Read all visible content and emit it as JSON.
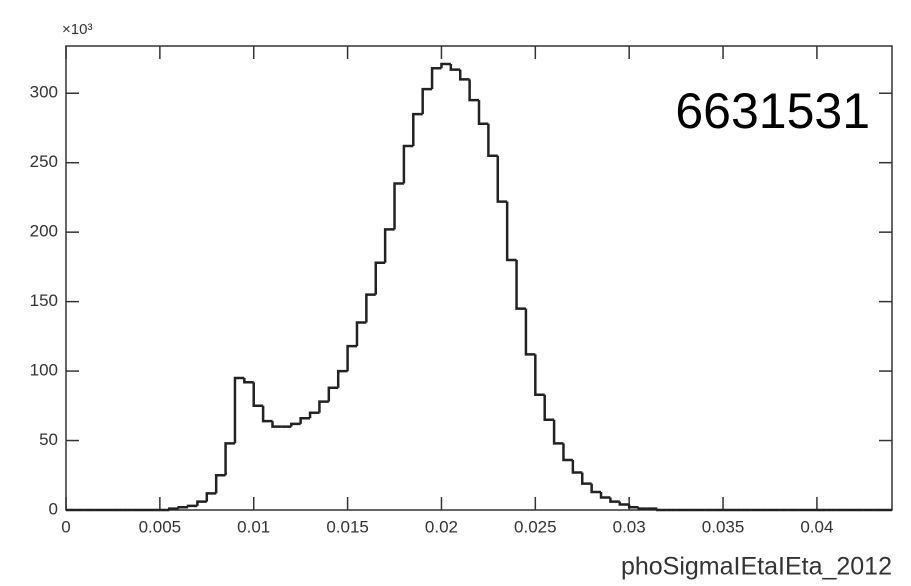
{
  "chart_data": {
    "type": "histogram",
    "x_label": "phoSigmaIEtaIEta_2012",
    "y_multiplier": "×10³",
    "annotation": "6631531",
    "color": "#222222",
    "bins": [
      0,
      0.0005,
      0.001,
      0.0015,
      0.002,
      0.0025,
      0.003,
      0.0035,
      0.004,
      0.0045,
      0.005,
      0.0055,
      0.006,
      0.0065,
      0.007,
      0.0075,
      0.008,
      0.0085,
      0.009,
      0.0095,
      0.01,
      0.0105,
      0.011,
      0.0115,
      0.012,
      0.0125,
      0.013,
      0.0135,
      0.014,
      0.0145,
      0.015,
      0.0155,
      0.016,
      0.0165,
      0.017,
      0.0175,
      0.018,
      0.0185,
      0.019,
      0.0195,
      0.02,
      0.0205,
      0.021,
      0.0215,
      0.022,
      0.0225,
      0.023,
      0.0235,
      0.024,
      0.0245,
      0.025,
      0.0255,
      0.026,
      0.0265,
      0.027,
      0.0275,
      0.028,
      0.0285,
      0.029,
      0.0295,
      0.03,
      0.0305,
      0.031,
      0.0315,
      0.032,
      0.0325,
      0.033,
      0.0335,
      0.034,
      0.0345,
      0.035,
      0.0355,
      0.036,
      0.0365,
      0.037,
      0.0375,
      0.038,
      0.0385,
      0.039,
      0.0395,
      0.04,
      0.0405,
      0.041,
      0.0415,
      0.042,
      0.0425,
      0.043,
      0.0435,
      0.044
    ],
    "counts": [
      0,
      0,
      0,
      0,
      0,
      0,
      0,
      0,
      0,
      0,
      0,
      1,
      2,
      3,
      6,
      12,
      25,
      48,
      95,
      92,
      75,
      64,
      60,
      60,
      62,
      66,
      70,
      78,
      88,
      100,
      118,
      135,
      155,
      178,
      202,
      235,
      262,
      285,
      303,
      318,
      321,
      317,
      310,
      295,
      278,
      255,
      222,
      180,
      145,
      112,
      83,
      65,
      48,
      36,
      27,
      19,
      13,
      9,
      6,
      4,
      2,
      1,
      1,
      0,
      0,
      0,
      0,
      0,
      0,
      0,
      0,
      0,
      0,
      0,
      0,
      0,
      0,
      0,
      0,
      0,
      0,
      0,
      0,
      0,
      0,
      0,
      0,
      0
    ],
    "xlim": [
      0,
      0.044
    ],
    "xticks": [
      0,
      0.005,
      0.01,
      0.015,
      0.02,
      0.025,
      0.03,
      0.035,
      0.04
    ],
    "ylim": [
      0,
      334
    ],
    "yticks": [
      0,
      50,
      100,
      150,
      200,
      250,
      300
    ]
  }
}
